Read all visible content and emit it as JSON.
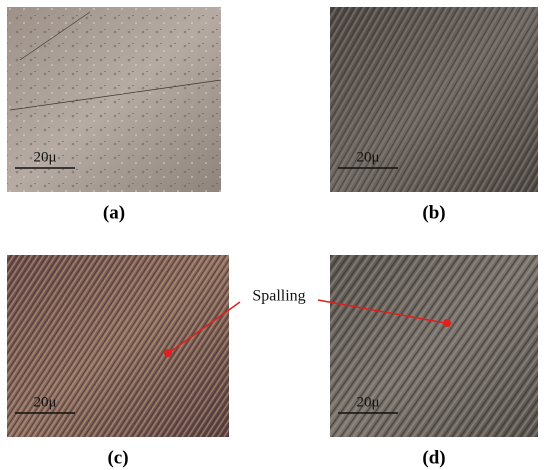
{
  "panels": [
    {
      "scale_label": "20μ",
      "caption": "(a)"
    },
    {
      "scale_label": "20μ",
      "caption": "(b)"
    },
    {
      "scale_label": "20μ",
      "caption": "(c)"
    },
    {
      "scale_label": "20μ",
      "caption": "(d)"
    }
  ],
  "annotation": "Spalling"
}
